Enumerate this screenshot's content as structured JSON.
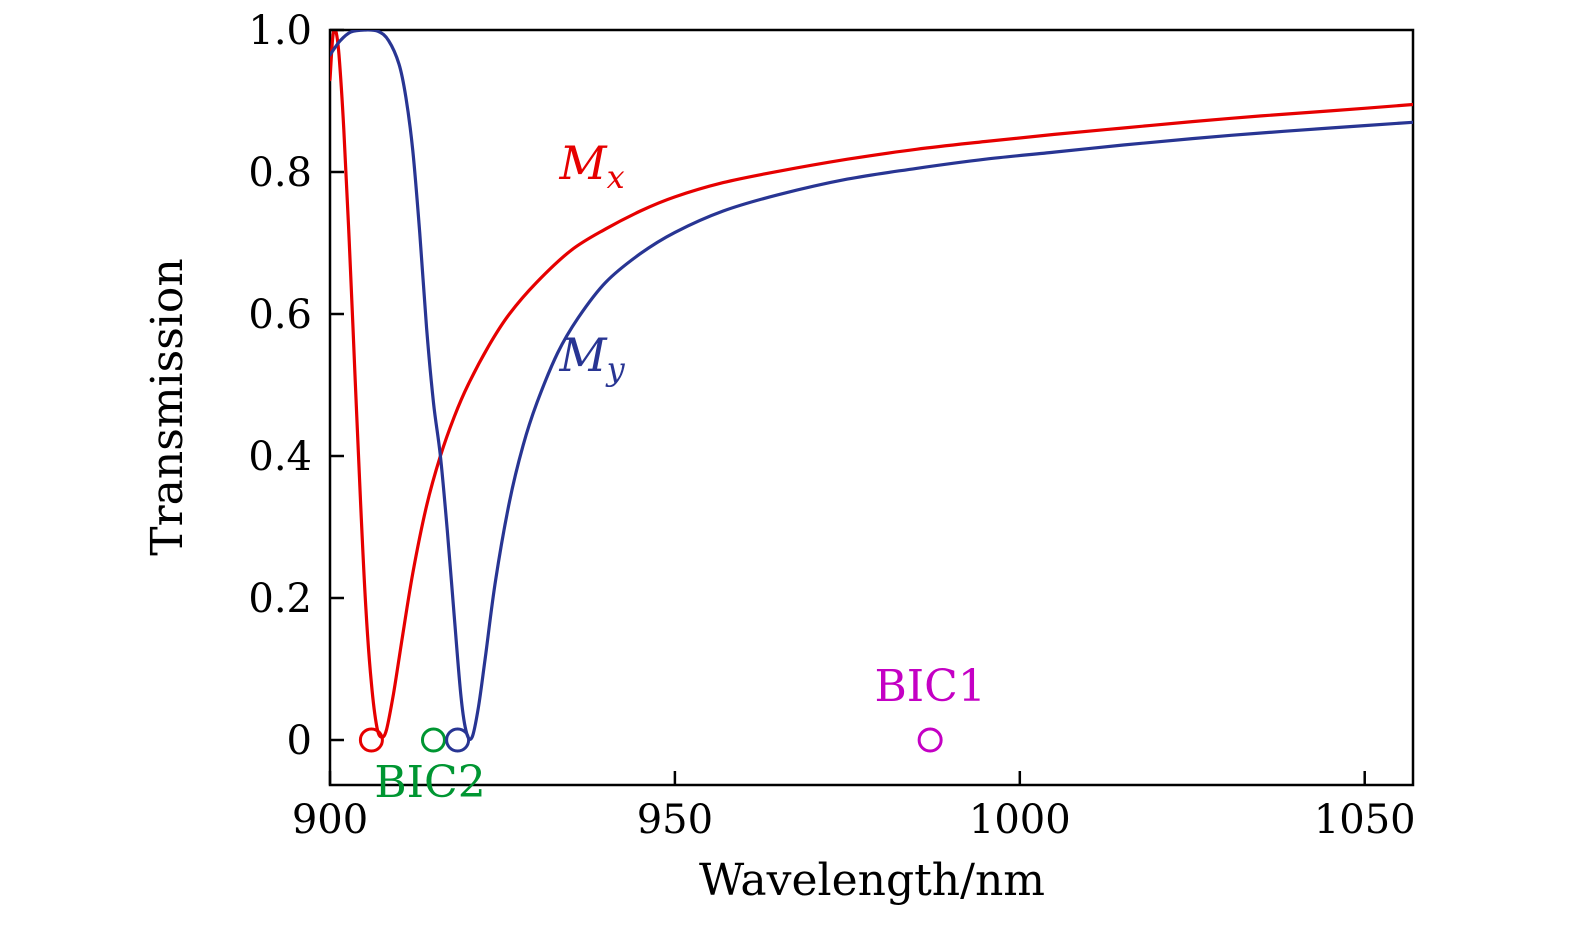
{
  "figure": {
    "background": "#ffffff",
    "frame_color": "#000000"
  },
  "chart_data": {
    "type": "line",
    "title": "",
    "xlabel": "Wavelength/nm",
    "ylabel": "Transmission",
    "xlim": [
      900,
      1057
    ],
    "ylim": [
      0,
      1.0
    ],
    "x_ticks": [
      900,
      950,
      1000,
      1050
    ],
    "x_tick_labels": [
      "900",
      "950",
      "1000",
      "1050"
    ],
    "y_ticks": [
      0,
      0.2,
      0.4,
      0.6,
      0.8,
      1.0
    ],
    "y_tick_labels": [
      "0",
      "0.2",
      "0.4",
      "0.6",
      "0.8",
      "1.0"
    ],
    "grid": false,
    "frame": true,
    "legend_position": "inline-labels",
    "series": [
      {
        "name": "Mx",
        "color": "#e60000",
        "points": [
          [
            900,
            0.93
          ],
          [
            900.4,
            0.99
          ],
          [
            900.8,
            1.0
          ],
          [
            901.3,
            0.965
          ],
          [
            902,
            0.86
          ],
          [
            902.8,
            0.7
          ],
          [
            903.6,
            0.52
          ],
          [
            904.4,
            0.34
          ],
          [
            905.2,
            0.185
          ],
          [
            906,
            0.08
          ],
          [
            906.8,
            0.018
          ],
          [
            907.5,
            0.004
          ],
          [
            908.2,
            0.015
          ],
          [
            909.2,
            0.065
          ],
          [
            910.5,
            0.145
          ],
          [
            912,
            0.235
          ],
          [
            914,
            0.33
          ],
          [
            916,
            0.4
          ],
          [
            918,
            0.455
          ],
          [
            920,
            0.5
          ],
          [
            923,
            0.555
          ],
          [
            926,
            0.6
          ],
          [
            930,
            0.645
          ],
          [
            935,
            0.69
          ],
          [
            940,
            0.72
          ],
          [
            945,
            0.745
          ],
          [
            950,
            0.765
          ],
          [
            957,
            0.785
          ],
          [
            965,
            0.801
          ],
          [
            975,
            0.818
          ],
          [
            985,
            0.832
          ],
          [
            995,
            0.843
          ],
          [
            1005,
            0.853
          ],
          [
            1015,
            0.862
          ],
          [
            1025,
            0.871
          ],
          [
            1035,
            0.879
          ],
          [
            1045,
            0.886
          ],
          [
            1057,
            0.895
          ]
        ]
      },
      {
        "name": "My",
        "color": "#283593",
        "points": [
          [
            900,
            0.965
          ],
          [
            901.5,
            0.985
          ],
          [
            903,
            0.997
          ],
          [
            905,
            1.0
          ],
          [
            907,
            0.998
          ],
          [
            908.5,
            0.985
          ],
          [
            910,
            0.952
          ],
          [
            911,
            0.905
          ],
          [
            912,
            0.83
          ],
          [
            913,
            0.715
          ],
          [
            914,
            0.58
          ],
          [
            915,
            0.475
          ],
          [
            916,
            0.4
          ],
          [
            917,
            0.295
          ],
          [
            918,
            0.175
          ],
          [
            919,
            0.06
          ],
          [
            919.8,
            0.01
          ],
          [
            920.6,
            0.004
          ],
          [
            921.5,
            0.045
          ],
          [
            922.5,
            0.115
          ],
          [
            924,
            0.225
          ],
          [
            926,
            0.335
          ],
          [
            928,
            0.415
          ],
          [
            930,
            0.475
          ],
          [
            933,
            0.545
          ],
          [
            936,
            0.595
          ],
          [
            940,
            0.645
          ],
          [
            945,
            0.685
          ],
          [
            950,
            0.715
          ],
          [
            957,
            0.745
          ],
          [
            965,
            0.768
          ],
          [
            975,
            0.79
          ],
          [
            985,
            0.805
          ],
          [
            995,
            0.818
          ],
          [
            1005,
            0.828
          ],
          [
            1015,
            0.838
          ],
          [
            1025,
            0.847
          ],
          [
            1035,
            0.855
          ],
          [
            1045,
            0.862
          ],
          [
            1057,
            0.87
          ]
        ]
      }
    ],
    "series_labels": [
      {
        "name": "Mx-label",
        "main": "M",
        "sub": "x",
        "color": "#e60000",
        "x": 938,
        "y": 0.79
      },
      {
        "name": "My-label",
        "main": "M",
        "sub": "y",
        "color": "#283593",
        "x": 938,
        "y": 0.52
      }
    ],
    "markers": [
      {
        "name": "mx-resonance-marker",
        "x": 906,
        "y": 0,
        "color": "#e60000",
        "style": "open-circle"
      },
      {
        "name": "bic2-marker",
        "x": 915,
        "y": 0,
        "color": "#009632",
        "style": "open-circle"
      },
      {
        "name": "my-resonance-marker",
        "x": 918.5,
        "y": 0,
        "color": "#283593",
        "style": "open-circle"
      },
      {
        "name": "bic1-marker",
        "x": 987,
        "y": 0,
        "color": "#c400c4",
        "style": "open-circle"
      }
    ],
    "annotations": [
      {
        "name": "bic1-label",
        "text": "BIC1",
        "color": "#c400c4",
        "x": 987,
        "y": 0.055
      },
      {
        "name": "bic2-label",
        "text": "BIC2",
        "color": "#009632",
        "x": 914.5,
        "y": -0.08
      }
    ]
  }
}
